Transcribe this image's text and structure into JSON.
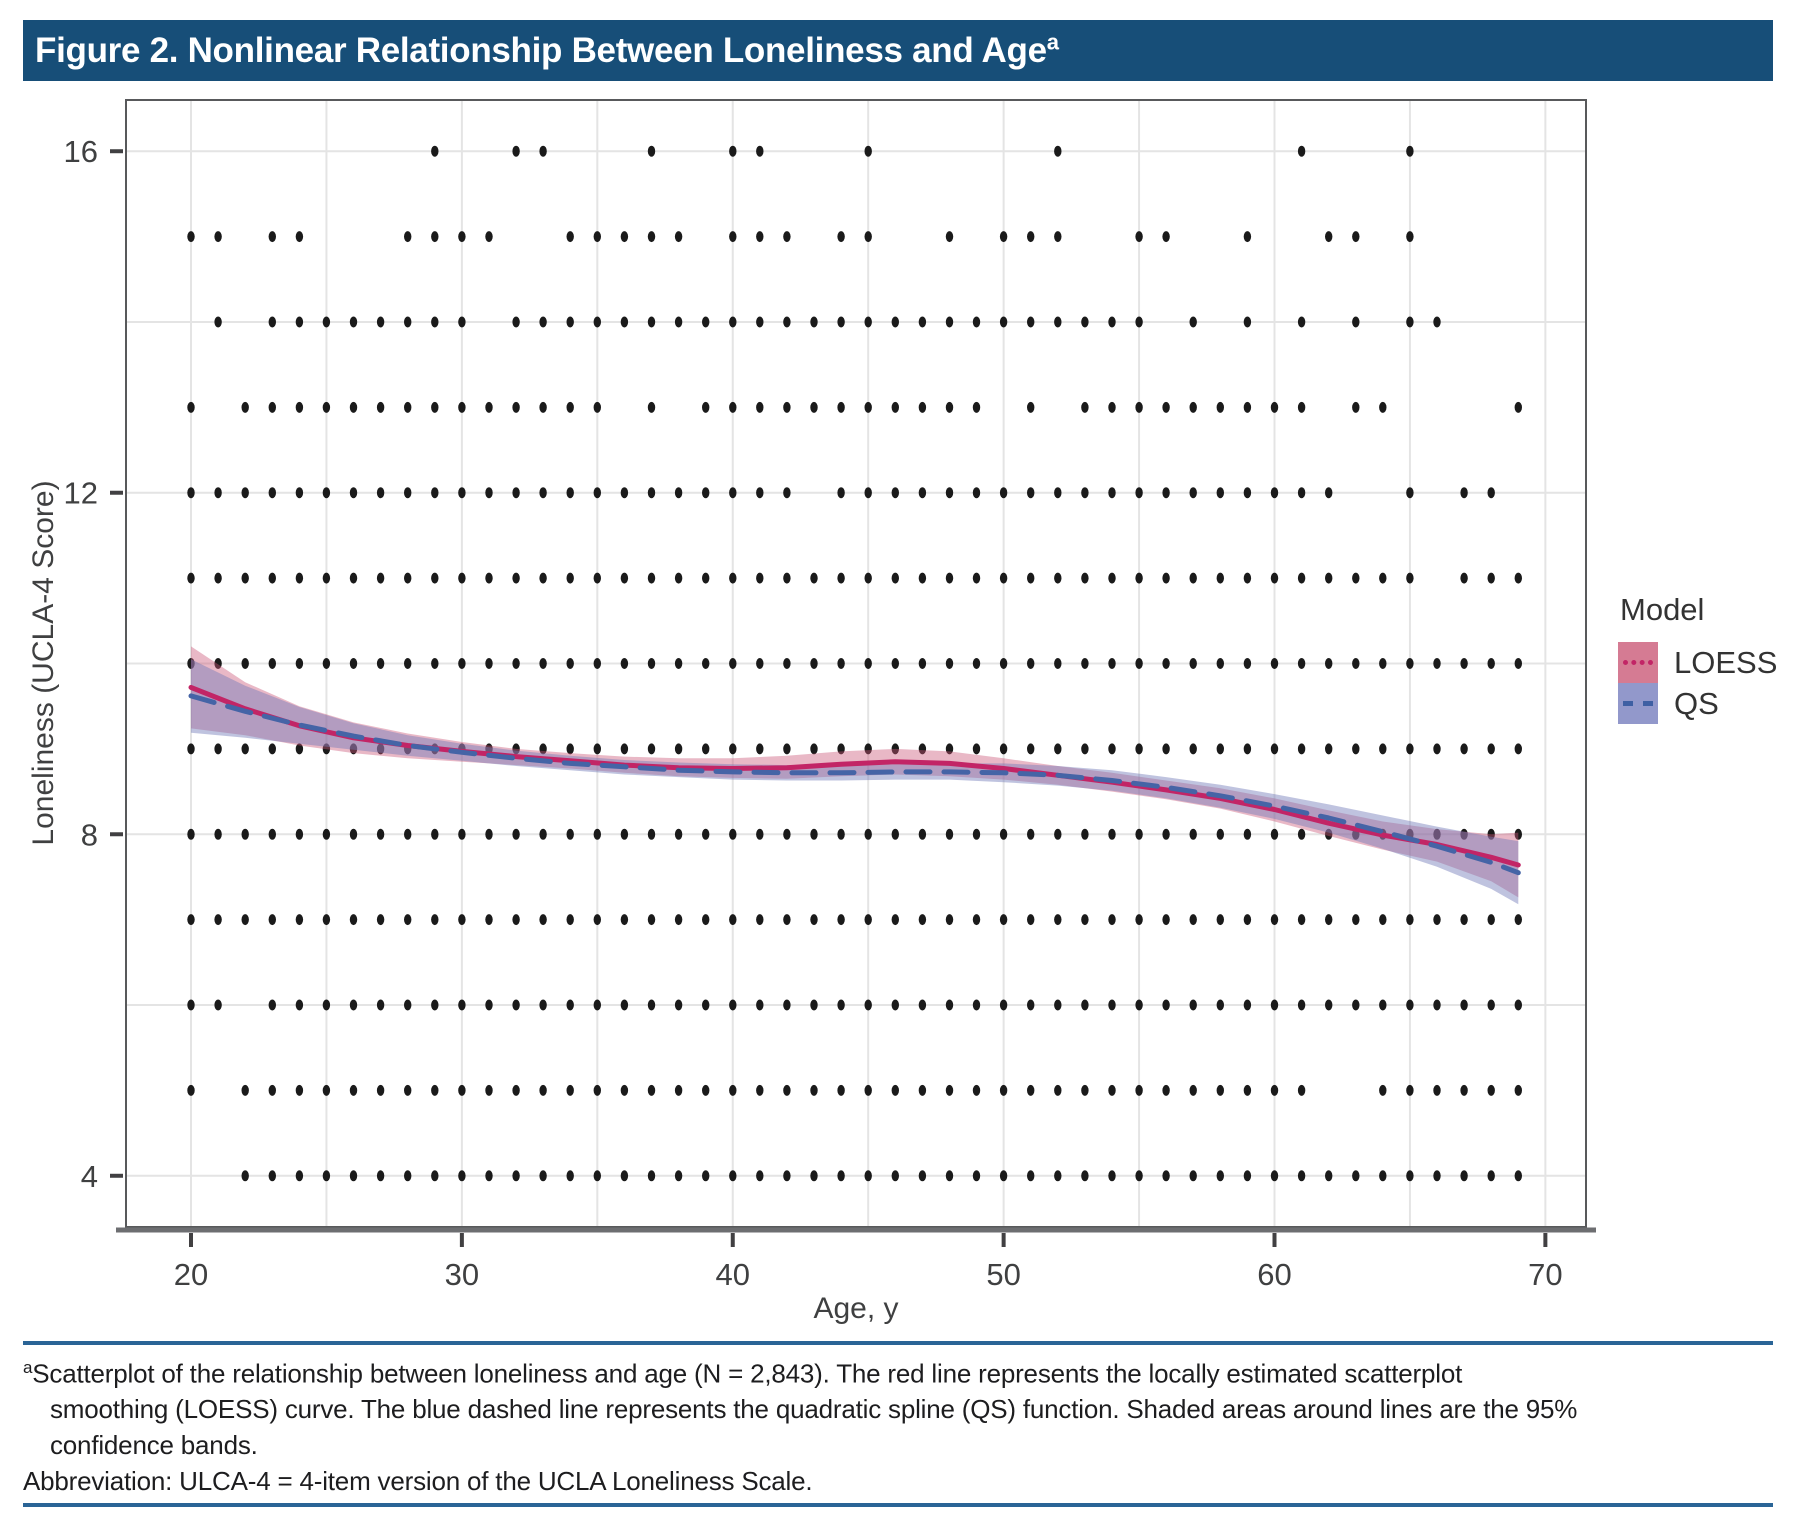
{
  "title_bar": {
    "label": "Figure 2. Nonlinear Relationship Between Loneliness and Age",
    "superscript": "a",
    "bg_color": "#174E78"
  },
  "chart_data": {
    "type": "scatter",
    "xlabel": "Age, y",
    "ylabel": "Loneliness (UCLA-4 Score)",
    "x_ticks": [
      20,
      30,
      40,
      50,
      60,
      70
    ],
    "y_ticks": [
      16,
      12,
      8,
      4
    ],
    "xlim": [
      17.6,
      71.5
    ],
    "ylim": [
      3.4,
      16.6
    ],
    "x_grid_step": 5,
    "y_grid_step": 2,
    "grid_color": "#e4e4e4",
    "dot_color": "#1a1a1a",
    "points_by_score": {
      "16": [
        29,
        32,
        33,
        37,
        40,
        41,
        45,
        52,
        61,
        65
      ],
      "15": [
        20,
        21,
        23,
        24,
        28,
        29,
        30,
        31,
        34,
        35,
        36,
        37,
        38,
        40,
        41,
        42,
        44,
        45,
        48,
        50,
        51,
        52,
        55,
        56,
        59,
        62,
        63,
        65
      ],
      "14": [
        21,
        23,
        24,
        25,
        26,
        27,
        28,
        29,
        30,
        32,
        33,
        34,
        35,
        36,
        37,
        38,
        39,
        40,
        41,
        42,
        43,
        44,
        45,
        46,
        47,
        48,
        49,
        50,
        51,
        52,
        53,
        54,
        55,
        57,
        59,
        61,
        63,
        65,
        66
      ],
      "13": [
        20,
        22,
        23,
        24,
        25,
        26,
        27,
        28,
        29,
        30,
        31,
        32,
        33,
        34,
        35,
        37,
        39,
        40,
        41,
        42,
        43,
        44,
        45,
        46,
        47,
        48,
        49,
        51,
        53,
        54,
        55,
        56,
        57,
        58,
        59,
        60,
        61,
        63,
        64,
        69
      ],
      "12": [
        20,
        21,
        22,
        23,
        24,
        25,
        26,
        27,
        28,
        29,
        30,
        31,
        32,
        33,
        34,
        35,
        36,
        37,
        38,
        39,
        40,
        41,
        42,
        44,
        45,
        46,
        47,
        48,
        49,
        50,
        51,
        52,
        53,
        54,
        55,
        56,
        57,
        58,
        59,
        60,
        61,
        62,
        65,
        67,
        68
      ],
      "11": [
        20,
        21,
        22,
        23,
        24,
        25,
        26,
        27,
        28,
        29,
        30,
        31,
        32,
        33,
        34,
        35,
        36,
        37,
        38,
        39,
        40,
        41,
        42,
        43,
        44,
        45,
        46,
        47,
        48,
        49,
        50,
        51,
        52,
        53,
        54,
        55,
        56,
        57,
        58,
        59,
        60,
        61,
        62,
        63,
        64,
        65,
        67,
        68,
        69
      ],
      "10": [
        20,
        21,
        22,
        23,
        24,
        25,
        26,
        27,
        28,
        29,
        30,
        31,
        32,
        33,
        34,
        35,
        36,
        37,
        38,
        39,
        40,
        41,
        42,
        43,
        44,
        45,
        46,
        47,
        48,
        49,
        50,
        51,
        52,
        53,
        54,
        55,
        56,
        57,
        58,
        59,
        60,
        61,
        62,
        63,
        64,
        65,
        66,
        67,
        68,
        69
      ],
      "9": [
        20,
        21,
        22,
        23,
        24,
        25,
        26,
        27,
        28,
        29,
        30,
        31,
        32,
        33,
        34,
        35,
        36,
        37,
        38,
        39,
        40,
        41,
        42,
        43,
        44,
        45,
        46,
        47,
        48,
        49,
        50,
        51,
        52,
        53,
        54,
        55,
        56,
        57,
        58,
        59,
        60,
        61,
        62,
        63,
        64,
        65,
        66,
        67,
        68,
        69
      ],
      "8": [
        20,
        21,
        22,
        23,
        24,
        25,
        26,
        27,
        28,
        29,
        30,
        31,
        32,
        33,
        34,
        35,
        36,
        37,
        38,
        39,
        40,
        41,
        42,
        43,
        44,
        45,
        46,
        47,
        48,
        49,
        50,
        51,
        52,
        53,
        54,
        55,
        56,
        57,
        58,
        59,
        60,
        61,
        62,
        63,
        64,
        65,
        66,
        67,
        68,
        69
      ],
      "7": [
        20,
        21,
        22,
        23,
        24,
        25,
        26,
        27,
        28,
        29,
        30,
        31,
        32,
        33,
        34,
        35,
        36,
        37,
        38,
        39,
        40,
        41,
        42,
        43,
        44,
        45,
        46,
        47,
        48,
        49,
        50,
        51,
        52,
        53,
        54,
        55,
        56,
        57,
        58,
        59,
        60,
        61,
        62,
        63,
        64,
        65,
        66,
        67,
        68,
        69
      ],
      "6": [
        20,
        21,
        23,
        24,
        25,
        26,
        27,
        28,
        29,
        30,
        31,
        32,
        33,
        34,
        35,
        36,
        37,
        38,
        39,
        40,
        41,
        42,
        43,
        44,
        45,
        46,
        47,
        48,
        49,
        50,
        51,
        52,
        53,
        54,
        55,
        56,
        57,
        58,
        59,
        60,
        61,
        62,
        63,
        64,
        65,
        66,
        67,
        68,
        69
      ],
      "5": [
        20,
        22,
        23,
        24,
        25,
        26,
        27,
        28,
        29,
        30,
        31,
        32,
        33,
        34,
        35,
        36,
        37,
        38,
        39,
        40,
        41,
        42,
        43,
        44,
        45,
        46,
        47,
        48,
        49,
        50,
        51,
        52,
        53,
        54,
        55,
        56,
        57,
        58,
        59,
        60,
        61,
        64,
        65,
        66,
        67,
        68,
        69
      ],
      "4": [
        22,
        23,
        24,
        25,
        26,
        27,
        28,
        29,
        30,
        31,
        32,
        33,
        34,
        35,
        36,
        37,
        38,
        39,
        40,
        41,
        42,
        43,
        44,
        45,
        46,
        47,
        48,
        49,
        50,
        51,
        52,
        53,
        54,
        55,
        56,
        57,
        58,
        59,
        60,
        61,
        62,
        63,
        64,
        65,
        66,
        67,
        68,
        69
      ]
    },
    "series": [
      {
        "name": "LOESS",
        "color": "#C22566",
        "dash": "",
        "band_color": "rgba(202,86,120,0.42)",
        "x": [
          20,
          22,
          24,
          26,
          28,
          30,
          32,
          34,
          36,
          38,
          40,
          42,
          44,
          46,
          48,
          50,
          52,
          54,
          56,
          58,
          60,
          62,
          64,
          66,
          68,
          69
        ],
        "y": [
          9.72,
          9.47,
          9.27,
          9.13,
          9.04,
          8.97,
          8.91,
          8.86,
          8.81,
          8.78,
          8.77,
          8.78,
          8.82,
          8.85,
          8.83,
          8.77,
          8.69,
          8.61,
          8.52,
          8.42,
          8.29,
          8.13,
          7.99,
          7.88,
          7.73,
          7.64
        ],
        "upper": [
          10.2,
          9.78,
          9.5,
          9.31,
          9.18,
          9.08,
          9.0,
          8.95,
          8.91,
          8.89,
          8.89,
          8.92,
          8.97,
          9.0,
          8.97,
          8.89,
          8.8,
          8.72,
          8.63,
          8.54,
          8.42,
          8.28,
          8.15,
          8.06,
          8.0,
          8.02
        ],
        "lower": [
          9.24,
          9.16,
          9.04,
          8.95,
          8.89,
          8.85,
          8.81,
          8.77,
          8.72,
          8.68,
          8.66,
          8.65,
          8.68,
          8.7,
          8.68,
          8.64,
          8.58,
          8.5,
          8.41,
          8.3,
          8.15,
          7.98,
          7.82,
          7.68,
          7.45,
          7.26
        ]
      },
      {
        "name": "QS",
        "color": "#4564A6",
        "dash": "24 14",
        "band_color": "rgba(112,122,184,0.45)",
        "x": [
          20,
          22,
          24,
          26,
          28,
          30,
          32,
          34,
          36,
          38,
          40,
          42,
          44,
          46,
          48,
          50,
          52,
          54,
          56,
          58,
          60,
          62,
          64,
          66,
          68,
          69
        ],
        "y": [
          9.62,
          9.44,
          9.28,
          9.15,
          9.04,
          8.96,
          8.89,
          8.83,
          8.79,
          8.75,
          8.73,
          8.72,
          8.72,
          8.73,
          8.73,
          8.72,
          8.69,
          8.63,
          8.55,
          8.45,
          8.33,
          8.19,
          8.03,
          7.86,
          7.67,
          7.55
        ],
        "upper": [
          10.05,
          9.74,
          9.49,
          9.3,
          9.16,
          9.06,
          8.98,
          8.92,
          8.87,
          8.84,
          8.82,
          8.81,
          8.81,
          8.82,
          8.83,
          8.83,
          8.8,
          8.75,
          8.67,
          8.58,
          8.47,
          8.35,
          8.22,
          8.09,
          7.97,
          7.92
        ],
        "lower": [
          9.19,
          9.13,
          9.06,
          8.99,
          8.92,
          8.86,
          8.8,
          8.75,
          8.7,
          8.67,
          8.64,
          8.63,
          8.63,
          8.64,
          8.64,
          8.61,
          8.57,
          8.51,
          8.42,
          8.31,
          8.18,
          8.02,
          7.83,
          7.62,
          7.36,
          7.18
        ]
      }
    ],
    "legend": {
      "title": "Model",
      "entries": [
        {
          "label": "LOESS",
          "swatch_fill": "#D57B93",
          "line_color": "#C22566",
          "line_style": "dotted"
        },
        {
          "label": "QS",
          "swatch_fill": "#9298CB",
          "line_color": "#3E5FA3",
          "line_style": "dashed"
        }
      ]
    }
  },
  "footnote": {
    "marker": "a",
    "rule_color": "#2A6496",
    "lines": [
      "Scatterplot of the relationship between loneliness and age (N = 2,843). The red line represents the locally estimated scatterplot",
      "smoothing (LOESS) curve. The blue dashed line represents the quadratic spline (QS) function. Shaded areas around lines are the 95%",
      "confidence bands.",
      "Abbreviation: ULCA-4 = 4-item version of the UCLA Loneliness Scale."
    ]
  }
}
